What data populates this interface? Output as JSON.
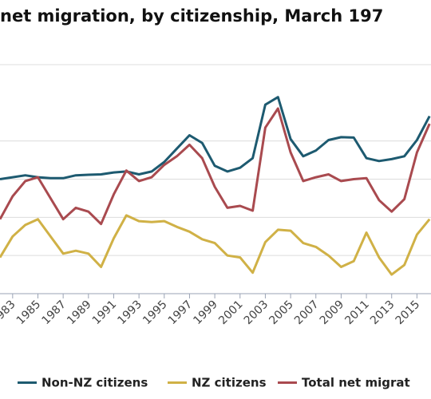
{
  "chart_data": {
    "type": "line",
    "title": "net migration, by citizenship, March 197",
    "x": [
      1982,
      1983,
      1984,
      1985,
      1986,
      1987,
      1988,
      1989,
      1990,
      1991,
      1992,
      1993,
      1994,
      1995,
      1996,
      1997,
      1998,
      1999,
      2000,
      2001,
      2002,
      2003,
      2004,
      2005,
      2006,
      2007,
      2008,
      2009,
      2010,
      2011,
      2012,
      2013,
      2014,
      2015,
      2016
    ],
    "tick_labels": [
      "1983",
      "1985",
      "1987",
      "1989",
      "1991",
      "1993",
      "1995",
      "1997",
      "1999",
      "2001",
      "2003",
      "2005",
      "2007",
      "2009",
      "2011",
      "2013",
      "2015"
    ],
    "series": [
      {
        "name": "Non-NZ citizens",
        "color": "#1d5a70",
        "values": [
          20000,
          21000,
          22000,
          21000,
          20500,
          20500,
          22000,
          22300,
          22500,
          23500,
          24000,
          22500,
          24000,
          29000,
          36000,
          43000,
          39000,
          27000,
          24000,
          26000,
          31000,
          59000,
          63000,
          41000,
          32000,
          35000,
          40500,
          42000,
          41800,
          31000,
          29500,
          30500,
          32000,
          40500,
          53000
        ]
      },
      {
        "name": "NZ citizens",
        "color": "#d0b146",
        "values": [
          -21000,
          -10000,
          -4000,
          -1000,
          -10000,
          -19000,
          -17500,
          -19000,
          -26000,
          -11000,
          1000,
          -2000,
          -2500,
          -2000,
          -5000,
          -7500,
          -11500,
          -13500,
          -20000,
          -21000,
          -29000,
          -13000,
          -6500,
          -7000,
          -13500,
          -15500,
          -20000,
          -26000,
          -23000,
          -8000,
          -21000,
          -30000,
          -25000,
          -9000,
          -1000
        ]
      },
      {
        "name": "Total net migrat",
        "color": "#a94a4f",
        "values": [
          -1000,
          11000,
          19000,
          21000,
          10000,
          -1000,
          5000,
          3000,
          -3500,
          12000,
          24500,
          19000,
          21000,
          27500,
          32000,
          38000,
          31000,
          16000,
          5000,
          6000,
          3500,
          47000,
          57000,
          34000,
          19000,
          21000,
          22500,
          19000,
          20000,
          20500,
          9000,
          3000,
          9500,
          34000,
          49000
        ]
      }
    ],
    "ylim": [
      -40000,
      90000
    ],
    "xlabel": "",
    "ylabel": "",
    "grid": true,
    "legend_position": "bottom"
  }
}
